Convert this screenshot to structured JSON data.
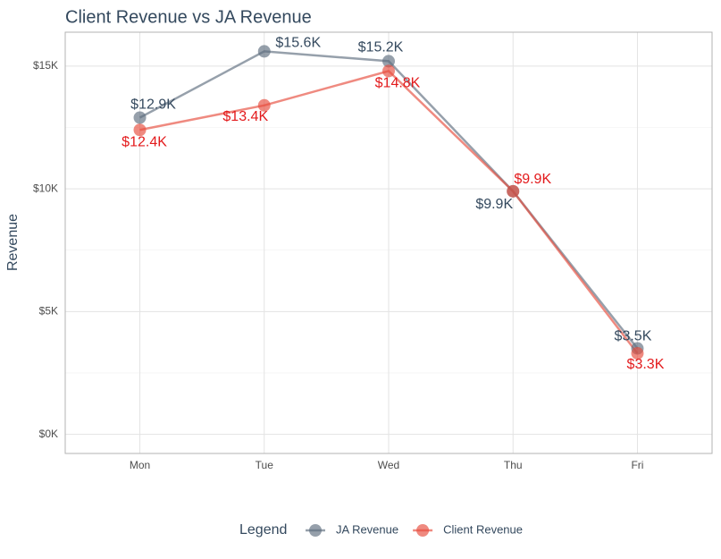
{
  "chart_data": {
    "type": "line",
    "title": "Client Revenue vs JA Revenue",
    "y_label": "Revenue",
    "categories": [
      "Mon",
      "Tue",
      "Wed",
      "Thu",
      "Fri"
    ],
    "series": [
      {
        "name": "JA Revenue",
        "color": "#5d6d7e",
        "label_color": "#34495e",
        "values": [
          12900,
          15600,
          15200,
          9900,
          3500
        ],
        "value_labels": [
          "$12.9K",
          "$15.6K",
          "$15.2K",
          "$9.9K",
          "$3.5K"
        ]
      },
      {
        "name": "Client Revenue",
        "color": "#e74c3c",
        "label_color": "#e31a1c",
        "values": [
          12400,
          13400,
          14800,
          9900,
          3300
        ],
        "value_labels": [
          "$12.4K",
          "$13.4K",
          "$14.8K",
          "$9.9K",
          "$3.3K"
        ]
      }
    ],
    "ylim": [
      -780,
      16380
    ],
    "yticks": [
      {
        "value": 0,
        "label": "$0K"
      },
      {
        "value": 5000,
        "label": "$5K"
      },
      {
        "value": 10000,
        "label": "$10K"
      },
      {
        "value": 15000,
        "label": "$15K"
      }
    ],
    "grid": true,
    "legend_title": "Legend",
    "legend_position": "bottom"
  }
}
